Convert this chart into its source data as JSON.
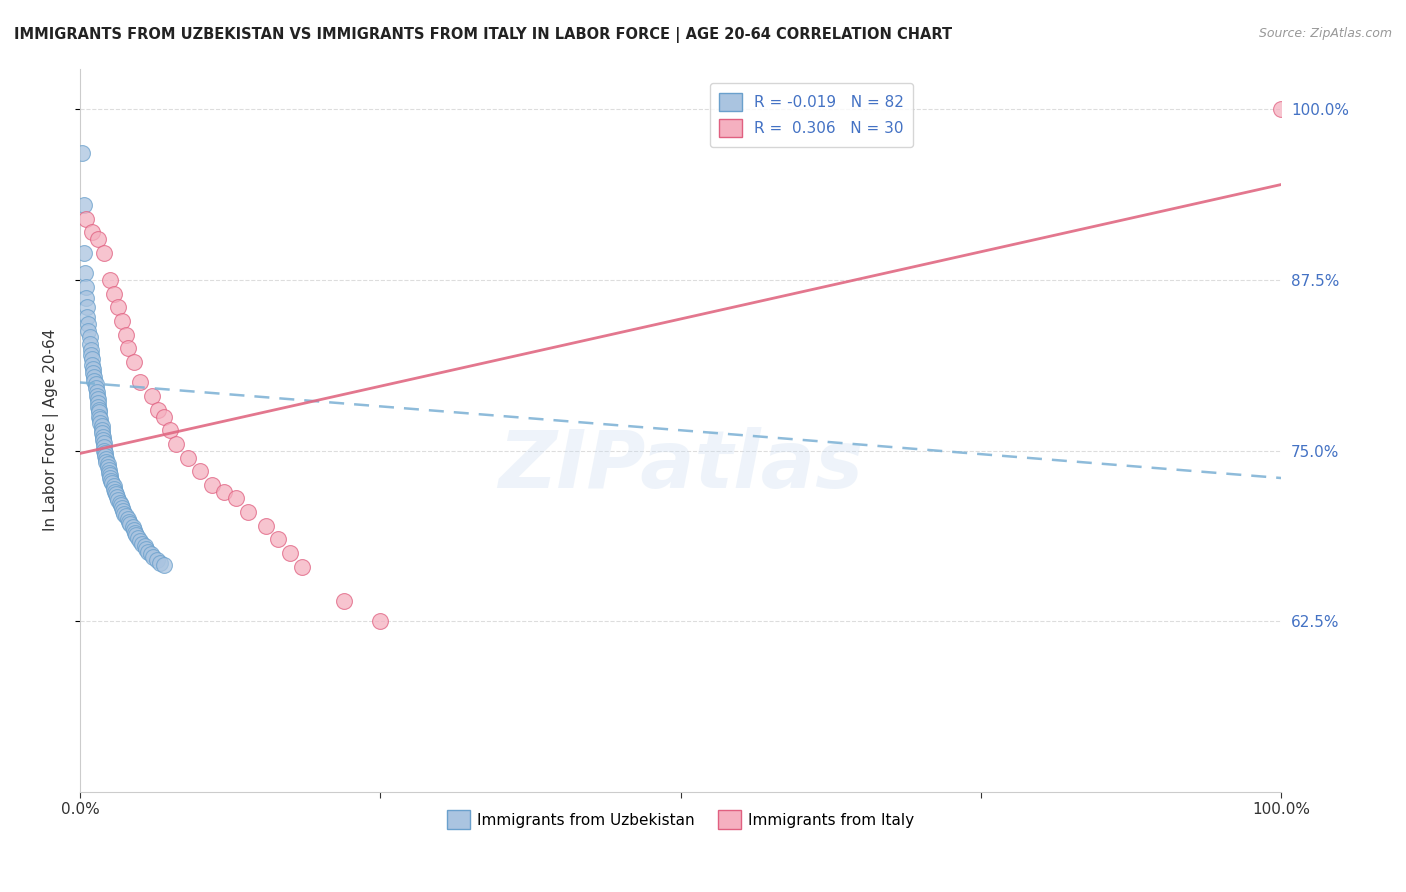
{
  "title": "IMMIGRANTS FROM UZBEKISTAN VS IMMIGRANTS FROM ITALY IN LABOR FORCE | AGE 20-64 CORRELATION CHART",
  "source": "Source: ZipAtlas.com",
  "ylabel": "In Labor Force | Age 20-64",
  "xlim": [
    0.0,
    1.0
  ],
  "ylim": [
    0.5,
    1.03
  ],
  "yticks": [
    0.625,
    0.75,
    0.875,
    1.0
  ],
  "ytick_labels": [
    "62.5%",
    "75.0%",
    "87.5%",
    "100.0%"
  ],
  "xticks": [
    0.0,
    0.25,
    0.5,
    0.75,
    1.0
  ],
  "xtick_labels": [
    "0.0%",
    "",
    "",
    "",
    "100.0%"
  ],
  "blue_R": "-0.019",
  "blue_N": "82",
  "pink_R": "0.306",
  "pink_N": "30",
  "blue_color": "#aac4e0",
  "pink_color": "#f5b0c0",
  "blue_edge_color": "#6aa0cc",
  "pink_edge_color": "#e06080",
  "blue_line_color": "#7ab0d4",
  "pink_line_color": "#e06882",
  "legend_label_blue": "Immigrants from Uzbekistan",
  "legend_label_pink": "Immigrants from Italy",
  "watermark": "ZIPatlas",
  "grid_color": "#dddddd",
  "blue_trend_start_y": 0.8,
  "blue_trend_end_y": 0.73,
  "pink_trend_start_y": 0.748,
  "pink_trend_end_y": 0.945,
  "uzbekistan_x": [
    0.002,
    0.003,
    0.003,
    0.004,
    0.005,
    0.005,
    0.006,
    0.006,
    0.007,
    0.007,
    0.008,
    0.008,
    0.009,
    0.009,
    0.01,
    0.01,
    0.011,
    0.011,
    0.012,
    0.012,
    0.013,
    0.013,
    0.014,
    0.014,
    0.015,
    0.015,
    0.015,
    0.016,
    0.016,
    0.016,
    0.017,
    0.017,
    0.018,
    0.018,
    0.018,
    0.019,
    0.019,
    0.02,
    0.02,
    0.02,
    0.021,
    0.021,
    0.022,
    0.022,
    0.023,
    0.023,
    0.024,
    0.024,
    0.025,
    0.025,
    0.026,
    0.027,
    0.028,
    0.028,
    0.029,
    0.03,
    0.031,
    0.032,
    0.033,
    0.034,
    0.035,
    0.036,
    0.037,
    0.038,
    0.04,
    0.041,
    0.042,
    0.044,
    0.045,
    0.046,
    0.047,
    0.048,
    0.05,
    0.052,
    0.054,
    0.055,
    0.057,
    0.059,
    0.061,
    0.064,
    0.067,
    0.07
  ],
  "uzbekistan_y": [
    0.968,
    0.93,
    0.895,
    0.88,
    0.87,
    0.862,
    0.855,
    0.848,
    0.843,
    0.838,
    0.833,
    0.828,
    0.824,
    0.82,
    0.817,
    0.813,
    0.81,
    0.807,
    0.804,
    0.801,
    0.799,
    0.796,
    0.793,
    0.79,
    0.788,
    0.785,
    0.782,
    0.78,
    0.778,
    0.775,
    0.773,
    0.77,
    0.768,
    0.765,
    0.763,
    0.76,
    0.758,
    0.756,
    0.753,
    0.75,
    0.748,
    0.746,
    0.744,
    0.742,
    0.74,
    0.738,
    0.736,
    0.734,
    0.732,
    0.73,
    0.728,
    0.726,
    0.724,
    0.722,
    0.72,
    0.718,
    0.716,
    0.714,
    0.712,
    0.71,
    0.708,
    0.706,
    0.704,
    0.702,
    0.7,
    0.698,
    0.696,
    0.694,
    0.692,
    0.69,
    0.688,
    0.686,
    0.684,
    0.682,
    0.68,
    0.678,
    0.676,
    0.674,
    0.672,
    0.67,
    0.668,
    0.666
  ],
  "italy_x": [
    0.005,
    0.01,
    0.015,
    0.02,
    0.025,
    0.028,
    0.032,
    0.035,
    0.038,
    0.04,
    0.045,
    0.05,
    0.06,
    0.065,
    0.07,
    0.075,
    0.08,
    0.09,
    0.1,
    0.11,
    0.12,
    0.13,
    0.14,
    0.155,
    0.165,
    0.175,
    0.185,
    0.22,
    0.25,
    1.0
  ],
  "italy_y": [
    0.92,
    0.91,
    0.905,
    0.895,
    0.875,
    0.865,
    0.855,
    0.845,
    0.835,
    0.825,
    0.815,
    0.8,
    0.79,
    0.78,
    0.775,
    0.765,
    0.755,
    0.745,
    0.735,
    0.725,
    0.72,
    0.715,
    0.705,
    0.695,
    0.685,
    0.675,
    0.665,
    0.64,
    0.625,
    1.0
  ]
}
